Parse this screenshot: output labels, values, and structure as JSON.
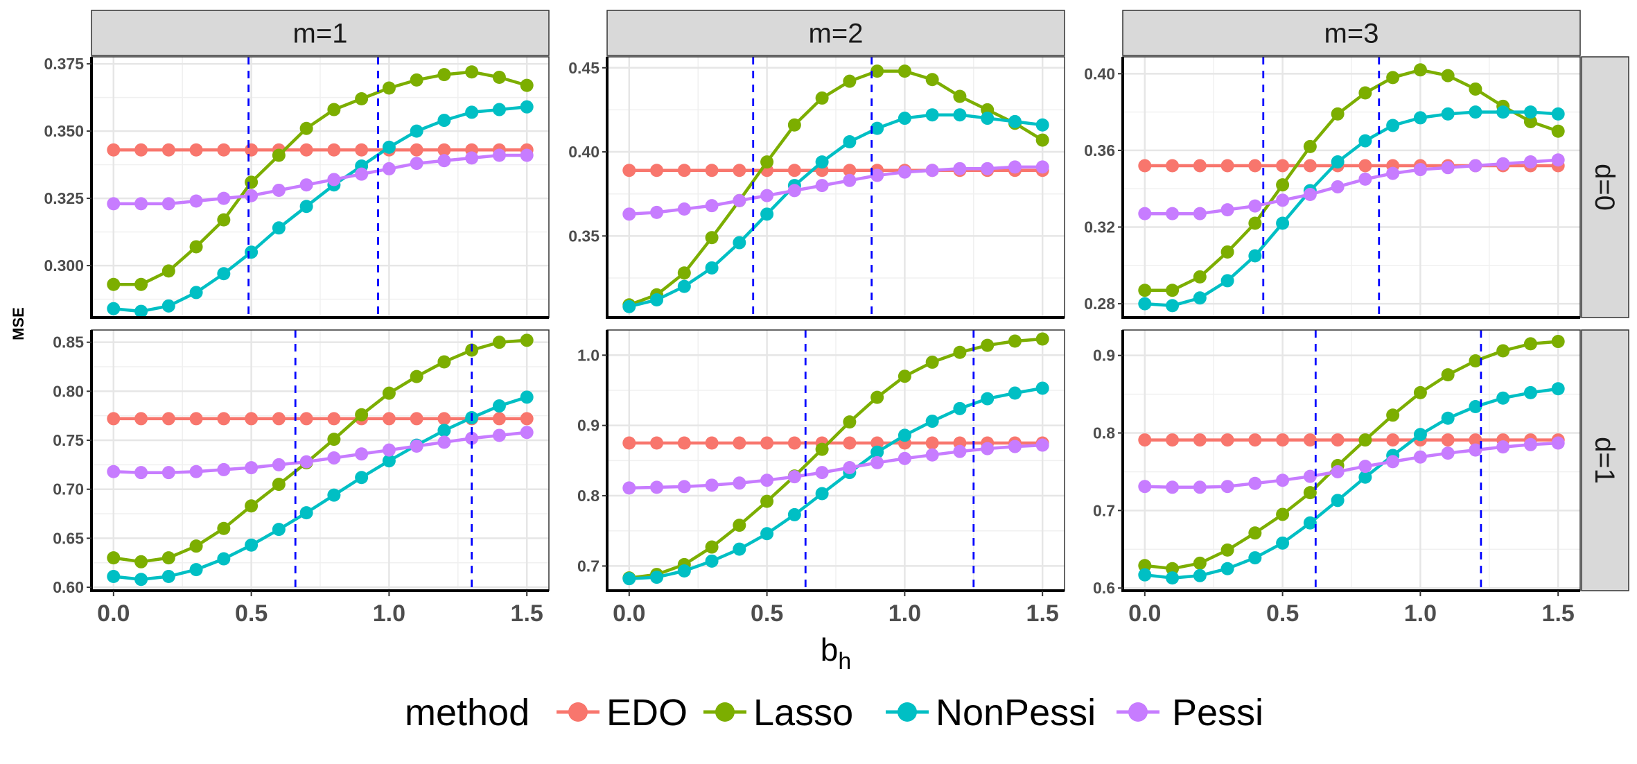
{
  "chart_data": {
    "type": "line",
    "facet_rows": [
      "d=0",
      "d=1"
    ],
    "facet_cols": [
      "m=1",
      "m=2",
      "m=3"
    ],
    "xlabel": "b",
    "xlabel_subscript": "h",
    "ylabel": "MSE",
    "x": [
      0.0,
      0.1,
      0.2,
      0.3,
      0.4,
      0.5,
      0.6,
      0.7,
      0.8,
      0.9,
      1.0,
      1.1,
      1.2,
      1.3,
      1.4,
      1.5
    ],
    "xlim": [
      -0.08,
      1.58
    ],
    "x_ticks": [
      0.0,
      0.5,
      1.0,
      1.5
    ],
    "x_tick_labels": [
      "0.0",
      "0.5",
      "1.0",
      "1.5"
    ],
    "legend": {
      "title": "method",
      "position": "bottom",
      "entries": [
        {
          "name": "EDO",
          "color": "#F8766D"
        },
        {
          "name": "Lasso",
          "color": "#7CAE00"
        },
        {
          "name": "NonPessi",
          "color": "#00BFC4"
        },
        {
          "name": "Pessi",
          "color": "#C77CFF"
        }
      ]
    },
    "vline_color": "#0000ff",
    "panels": [
      {
        "row": "d=0",
        "col": "m=1",
        "ylim": [
          0.2807,
          0.3776
        ],
        "y_ticks": [
          0.3,
          0.325,
          0.35,
          0.375
        ],
        "y_tick_labels": [
          "0.300",
          "0.325",
          "0.350",
          "0.375"
        ],
        "vlines": [
          0.49,
          0.96
        ],
        "series": [
          {
            "name": "EDO",
            "values": [
              0.343,
              0.343,
              0.343,
              0.343,
              0.343,
              0.343,
              0.343,
              0.343,
              0.343,
              0.343,
              0.343,
              0.343,
              0.343,
              0.343,
              0.343,
              0.343
            ]
          },
          {
            "name": "Lasso",
            "values": [
              0.293,
              0.293,
              0.298,
              0.307,
              0.317,
              0.331,
              0.341,
              0.351,
              0.358,
              0.362,
              0.366,
              0.369,
              0.371,
              0.372,
              0.37,
              0.367
            ]
          },
          {
            "name": "NonPessi",
            "values": [
              0.284,
              0.283,
              0.285,
              0.29,
              0.297,
              0.305,
              0.314,
              0.322,
              0.33,
              0.337,
              0.344,
              0.35,
              0.354,
              0.357,
              0.358,
              0.359
            ]
          },
          {
            "name": "Pessi",
            "values": [
              0.323,
              0.323,
              0.323,
              0.324,
              0.325,
              0.326,
              0.328,
              0.33,
              0.332,
              0.334,
              0.336,
              0.338,
              0.339,
              0.34,
              0.341,
              0.341
            ]
          }
        ]
      },
      {
        "row": "d=0",
        "col": "m=2",
        "ylim": [
          0.3015,
          0.4565
        ],
        "y_ticks": [
          0.35,
          0.4,
          0.45
        ],
        "y_tick_labels": [
          "0.35",
          "0.40",
          "0.45"
        ],
        "vlines": [
          0.45,
          0.88
        ],
        "series": [
          {
            "name": "EDO",
            "values": [
              0.389,
              0.389,
              0.389,
              0.389,
              0.389,
              0.389,
              0.389,
              0.389,
              0.389,
              0.389,
              0.389,
              0.389,
              0.389,
              0.389,
              0.389,
              0.389
            ]
          },
          {
            "name": "Lasso",
            "values": [
              0.309,
              0.315,
              0.328,
              0.349,
              0.371,
              0.394,
              0.416,
              0.432,
              0.442,
              0.448,
              0.448,
              0.443,
              0.433,
              0.425,
              0.417,
              0.407
            ]
          },
          {
            "name": "NonPessi",
            "values": [
              0.308,
              0.312,
              0.32,
              0.331,
              0.346,
              0.363,
              0.38,
              0.394,
              0.406,
              0.414,
              0.42,
              0.422,
              0.422,
              0.42,
              0.418,
              0.416
            ]
          },
          {
            "name": "Pessi",
            "values": [
              0.363,
              0.364,
              0.366,
              0.368,
              0.371,
              0.374,
              0.377,
              0.38,
              0.383,
              0.386,
              0.388,
              0.389,
              0.39,
              0.39,
              0.391,
              0.391
            ]
          }
        ]
      },
      {
        "row": "d=0",
        "col": "m=3",
        "ylim": [
          0.2728,
          0.4088
        ],
        "y_ticks": [
          0.28,
          0.32,
          0.36,
          0.4
        ],
        "y_tick_labels": [
          "0.28",
          "0.32",
          "0.36",
          "0.40"
        ],
        "vlines": [
          0.43,
          0.85
        ],
        "series": [
          {
            "name": "EDO",
            "values": [
              0.352,
              0.352,
              0.352,
              0.352,
              0.352,
              0.352,
              0.352,
              0.352,
              0.352,
              0.352,
              0.352,
              0.352,
              0.352,
              0.352,
              0.352,
              0.352
            ]
          },
          {
            "name": "Lasso",
            "values": [
              0.287,
              0.287,
              0.294,
              0.307,
              0.322,
              0.342,
              0.362,
              0.379,
              0.39,
              0.398,
              0.402,
              0.399,
              0.392,
              0.383,
              0.375,
              0.37
            ]
          },
          {
            "name": "NonPessi",
            "values": [
              0.28,
              0.279,
              0.283,
              0.292,
              0.305,
              0.322,
              0.339,
              0.354,
              0.365,
              0.373,
              0.377,
              0.379,
              0.38,
              0.38,
              0.38,
              0.379
            ]
          },
          {
            "name": "Pessi",
            "values": [
              0.327,
              0.327,
              0.327,
              0.329,
              0.331,
              0.334,
              0.337,
              0.341,
              0.345,
              0.348,
              0.35,
              0.351,
              0.352,
              0.353,
              0.354,
              0.355
            ]
          }
        ]
      },
      {
        "row": "d=1",
        "col": "m=1",
        "ylim": [
          0.5965,
          0.8625
        ],
        "y_ticks": [
          0.6,
          0.65,
          0.7,
          0.75,
          0.8,
          0.85
        ],
        "y_tick_labels": [
          "0.60",
          "0.65",
          "0.70",
          "0.75",
          "0.80",
          "0.85"
        ],
        "vlines": [
          0.66,
          1.3
        ],
        "series": [
          {
            "name": "EDO",
            "values": [
              0.772,
              0.772,
              0.772,
              0.772,
              0.772,
              0.772,
              0.772,
              0.772,
              0.772,
              0.772,
              0.772,
              0.772,
              0.772,
              0.772,
              0.772,
              0.772
            ]
          },
          {
            "name": "Lasso",
            "values": [
              0.63,
              0.626,
              0.63,
              0.642,
              0.66,
              0.683,
              0.705,
              0.727,
              0.751,
              0.776,
              0.798,
              0.815,
              0.83,
              0.842,
              0.85,
              0.852
            ]
          },
          {
            "name": "NonPessi",
            "values": [
              0.611,
              0.608,
              0.611,
              0.618,
              0.629,
              0.643,
              0.659,
              0.676,
              0.694,
              0.712,
              0.729,
              0.745,
              0.76,
              0.773,
              0.785,
              0.794
            ]
          },
          {
            "name": "Pessi",
            "values": [
              0.718,
              0.717,
              0.717,
              0.718,
              0.72,
              0.722,
              0.725,
              0.728,
              0.732,
              0.736,
              0.74,
              0.744,
              0.748,
              0.752,
              0.755,
              0.758
            ]
          }
        ]
      },
      {
        "row": "d=1",
        "col": "m=2",
        "ylim": [
          0.6649,
          1.0358
        ],
        "y_ticks": [
          0.7,
          0.8,
          0.9,
          1.0
        ],
        "y_tick_labels": [
          "0.7",
          "0.8",
          "0.9",
          "1.0"
        ],
        "vlines": [
          0.64,
          1.25
        ],
        "series": [
          {
            "name": "EDO",
            "values": [
              0.875,
              0.875,
              0.875,
              0.875,
              0.875,
              0.875,
              0.875,
              0.875,
              0.875,
              0.875,
              0.875,
              0.875,
              0.875,
              0.875,
              0.875,
              0.875
            ]
          },
          {
            "name": "Lasso",
            "values": [
              0.683,
              0.688,
              0.702,
              0.727,
              0.758,
              0.792,
              0.828,
              0.866,
              0.905,
              0.94,
              0.97,
              0.99,
              1.004,
              1.014,
              1.02,
              1.023
            ]
          },
          {
            "name": "NonPessi",
            "values": [
              0.682,
              0.684,
              0.693,
              0.707,
              0.724,
              0.746,
              0.773,
              0.803,
              0.833,
              0.862,
              0.886,
              0.906,
              0.924,
              0.938,
              0.946,
              0.953
            ]
          },
          {
            "name": "Pessi",
            "values": [
              0.811,
              0.812,
              0.813,
              0.815,
              0.818,
              0.822,
              0.827,
              0.833,
              0.84,
              0.847,
              0.853,
              0.858,
              0.863,
              0.867,
              0.87,
              0.872
            ]
          }
        ]
      },
      {
        "row": "d=1",
        "col": "m=3",
        "ylim": [
          0.5966,
          0.9328
        ],
        "y_ticks": [
          0.6,
          0.7,
          0.8,
          0.9
        ],
        "y_tick_labels": [
          "0.6",
          "0.7",
          "0.8",
          "0.9"
        ],
        "vlines": [
          0.62,
          1.22
        ],
        "series": [
          {
            "name": "EDO",
            "values": [
              0.791,
              0.791,
              0.791,
              0.791,
              0.791,
              0.791,
              0.791,
              0.791,
              0.791,
              0.791,
              0.791,
              0.791,
              0.791,
              0.791,
              0.791,
              0.791
            ]
          },
          {
            "name": "Lasso",
            "values": [
              0.629,
              0.625,
              0.632,
              0.649,
              0.671,
              0.695,
              0.723,
              0.758,
              0.791,
              0.823,
              0.852,
              0.875,
              0.893,
              0.906,
              0.915,
              0.918
            ]
          },
          {
            "name": "NonPessi",
            "values": [
              0.617,
              0.613,
              0.616,
              0.625,
              0.639,
              0.658,
              0.684,
              0.713,
              0.743,
              0.771,
              0.798,
              0.819,
              0.834,
              0.845,
              0.852,
              0.857
            ]
          },
          {
            "name": "Pessi",
            "values": [
              0.731,
              0.73,
              0.73,
              0.731,
              0.735,
              0.739,
              0.744,
              0.75,
              0.757,
              0.763,
              0.769,
              0.774,
              0.778,
              0.782,
              0.785,
              0.787
            ]
          }
        ]
      }
    ]
  }
}
